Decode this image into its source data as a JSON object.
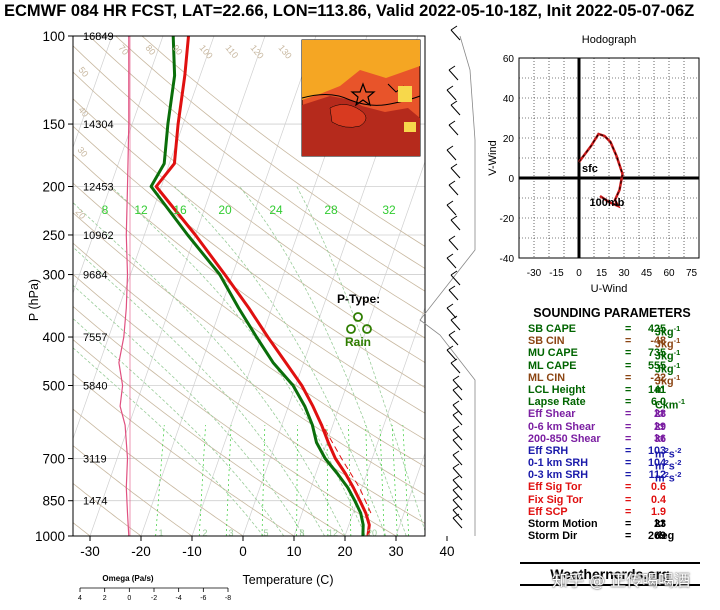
{
  "title": "ECMWF 084 HR FCST, LAT=22.66, LON=113.86, Valid 2022-05-10-18Z, Init 2022-05-07-06Z",
  "colors": {
    "temperature": "#e01010",
    "dewpoint": "#0a6e0a",
    "mixing_ratio": "#33cc33",
    "omega": "#e05080",
    "dry_adiabat": "#c8b8a0",
    "moist_adiabat": "#99cc99",
    "parcel": "#e01010",
    "hodograph": "#cc1a1a"
  },
  "skewt": {
    "ylabel": "P (hPa)",
    "xlabel": "Temperature (C)",
    "omega_label": "Omega (Pa/s)",
    "omega_ticks": [
      "4",
      "2",
      "0",
      "-2",
      "-4",
      "-6",
      "-8"
    ],
    "ptype_label": "P-Type:",
    "ptype_value": "Rain",
    "pressure_ticks": [
      "100",
      "150",
      "200",
      "250",
      "300",
      "400",
      "500",
      "700",
      "850",
      "1000"
    ],
    "height_labels": [
      "16849",
      "14304",
      "12453",
      "10962",
      "9684",
      "7557",
      "5840",
      "3119",
      "1474"
    ],
    "temp_ticks": [
      "-30",
      "-20",
      "-10",
      "0",
      "10",
      "20",
      "30",
      "40"
    ],
    "mixing_ratio_labels": [
      "8",
      "12",
      "16",
      "20",
      "24",
      "28",
      "32"
    ],
    "dry_adiabat_labels": [
      "70",
      "80",
      "90",
      "100",
      "110",
      "120",
      "130",
      "140",
      "20",
      "30",
      "40",
      "50"
    ],
    "moist_adiabat_labels": [
      "1",
      "2",
      "3",
      "5",
      "8",
      "12",
      "20"
    ],
    "map_inset": "regional map inset"
  },
  "chart_data": [
    {
      "type": "line",
      "title": "",
      "xlabel": "Temperature (C)",
      "ylabel": "P (hPa)",
      "y_scale": "log",
      "ylim": [
        1000,
        100
      ],
      "xlim": [
        -35,
        45
      ],
      "series": [
        {
          "name": "",
          "variable": "temperature",
          "points": [
            [
              1000,
              24.5
            ],
            [
              950,
              24.0
            ],
            [
              900,
              22.5
            ],
            [
              850,
              20.5
            ],
            [
              800,
              18.3
            ],
            [
              750,
              15.8
            ],
            [
              700,
              12.8
            ],
            [
              650,
              10.3
            ],
            [
              600,
              7.8
            ],
            [
              550,
              4.8
            ],
            [
              500,
              1.2
            ],
            [
              450,
              -3.5
            ],
            [
              400,
              -8.8
            ],
            [
              350,
              -14.5
            ],
            [
              300,
              -21.5
            ],
            [
              250,
              -30
            ],
            [
              200,
              -41
            ],
            [
              180,
              -39
            ],
            [
              150,
              -41
            ],
            [
              120,
              -43
            ],
            [
              100,
              -45
            ]
          ]
        },
        {
          "name": "",
          "variable": "dewpoint",
          "points": [
            [
              1000,
              23.5
            ],
            [
              950,
              22.8
            ],
            [
              900,
              21.5
            ],
            [
              850,
              19.5
            ],
            [
              800,
              17.2
            ],
            [
              750,
              14.2
            ],
            [
              700,
              10.8
            ],
            [
              650,
              8.0
            ],
            [
              600,
              6.0
            ],
            [
              550,
              3.2
            ],
            [
              500,
              -0.5
            ],
            [
              450,
              -6.0
            ],
            [
              400,
              -11.0
            ],
            [
              350,
              -16.5
            ],
            [
              300,
              -22.5
            ],
            [
              250,
              -31.5
            ],
            [
              200,
              -42
            ],
            [
              180,
              -41
            ],
            [
              150,
              -43
            ],
            [
              120,
              -45
            ],
            [
              100,
              -48
            ]
          ]
        },
        {
          "name": "",
          "variable": "parcel",
          "points": [
            [
              900,
              23.5
            ],
            [
              800,
              19.5
            ],
            [
              700,
              14.0
            ],
            [
              600,
              8.0
            ],
            [
              500,
              1.0
            ],
            [
              420,
              -6.5
            ]
          ]
        },
        {
          "name": "Omega (Pa/s)",
          "variable": "omega",
          "points": [
            [
              1000,
              0.1
            ],
            [
              900,
              0.2
            ],
            [
              800,
              0.3
            ],
            [
              700,
              0.2
            ],
            [
              600,
              0.4
            ],
            [
              550,
              0.8
            ],
            [
              500,
              0.6
            ],
            [
              450,
              0.9
            ],
            [
              400,
              0.5
            ],
            [
              350,
              0.3
            ],
            [
              300,
              0.2
            ],
            [
              250,
              0.3
            ],
            [
              200,
              0.2
            ],
            [
              150,
              0.1
            ],
            [
              100,
              0.1
            ]
          ]
        }
      ]
    },
    {
      "type": "line",
      "title": "Hodograph",
      "xlabel": "U-Wind",
      "ylabel": "V-Wind",
      "xlim": [
        -40,
        80
      ],
      "ylim": [
        -40,
        60
      ],
      "x_ticks": [
        "-30",
        "-15",
        "0",
        "15",
        "30",
        "45",
        "60",
        "75"
      ],
      "y_ticks": [
        "60",
        "40",
        "20",
        "0",
        "-20",
        "-40"
      ],
      "labels": {
        "surface": "sfc",
        "top": "100mb"
      },
      "series": [
        {
          "name": "",
          "points": [
            [
              0,
              8
            ],
            [
              4,
              12
            ],
            [
              8,
              16
            ],
            [
              13,
              22
            ],
            [
              17,
              21
            ],
            [
              21,
              18
            ],
            [
              25,
              11
            ],
            [
              29,
              2
            ],
            [
              27,
              -6
            ],
            [
              24,
              -11
            ],
            [
              26,
              -14
            ],
            [
              20,
              -12
            ],
            [
              14,
              -9
            ]
          ]
        }
      ]
    }
  ],
  "params": {
    "header": "SOUNDING PARAMETERS",
    "rows": [
      {
        "label": "SB CAPE",
        "eq": "=",
        "value": "425",
        "unit": "Jkg",
        "sup": "-1",
        "color": "#006400"
      },
      {
        "label": "SB CIN",
        "eq": "=",
        "value": "-48",
        "unit": "Jkg",
        "sup": "-1",
        "color": "#8b4513"
      },
      {
        "label": "MU CAPE",
        "eq": "=",
        "value": "735",
        "unit": "Jkg",
        "sup": "-1",
        "color": "#006400"
      },
      {
        "label": "ML CAPE",
        "eq": "=",
        "value": "555",
        "unit": "Jkg",
        "sup": "-1",
        "color": "#006400"
      },
      {
        "label": "ML CIN",
        "eq": "=",
        "value": "-22",
        "unit": "Jkg",
        "sup": "-1",
        "color": "#8b4513"
      },
      {
        "label": "LCL Height",
        "eq": "=",
        "value": "141",
        "unit": "m",
        "sup": "",
        "color": "#006400"
      },
      {
        "label": "Lapse Rate",
        "eq": "=",
        "value": "6.0",
        "unit": "Ckm",
        "sup": "-1",
        "color": "#006400"
      },
      {
        "label": "Eff Shear",
        "eq": "=",
        "value": "28",
        "unit": "kt",
        "sup": "",
        "color": "#7b1fa2"
      },
      {
        "label": "0-6 km Shear",
        "eq": "=",
        "value": "29",
        "unit": "kt",
        "sup": "",
        "color": "#7b1fa2"
      },
      {
        "label": "200-850 Shear",
        "eq": "=",
        "value": "36",
        "unit": "kt",
        "sup": "",
        "color": "#7b1fa2"
      },
      {
        "label": "Eff SRH",
        "eq": "=",
        "value": "103",
        "unit": "m",
        "sup": "2",
        "unit2": "s",
        "sup2": "-2",
        "color": "#1a1aaa"
      },
      {
        "label": "0-1 km SRH",
        "eq": "=",
        "value": "104",
        "unit": "m",
        "sup": "2",
        "unit2": "s",
        "sup2": "-2",
        "color": "#1a1aaa"
      },
      {
        "label": "0-3 km SRH",
        "eq": "=",
        "value": "112",
        "unit": "m",
        "sup": "2",
        "unit2": "s",
        "sup2": "-2",
        "color": "#1a1aaa"
      },
      {
        "label": "Eff Sig Tor",
        "eq": "=",
        "value": "0.6",
        "unit": "",
        "sup": "",
        "color": "#e01010"
      },
      {
        "label": "Fix Sig Tor",
        "eq": "=",
        "value": "0.4",
        "unit": "",
        "sup": "",
        "color": "#e01010"
      },
      {
        "label": "Eff SCP",
        "eq": "=",
        "value": "1.9",
        "unit": "",
        "sup": "",
        "color": "#e01010"
      },
      {
        "label": "Storm Motion",
        "eq": "=",
        "value": "23",
        "unit": "kt",
        "sup": "",
        "color": "#000000"
      },
      {
        "label": "Storm Dir",
        "eq": "=",
        "value": "269",
        "unit": "deg",
        "sup": "",
        "color": "#000000"
      }
    ],
    "credit": "Weathernerds.org"
  },
  "watermark": "知乎 @ 正传喝喝酒"
}
